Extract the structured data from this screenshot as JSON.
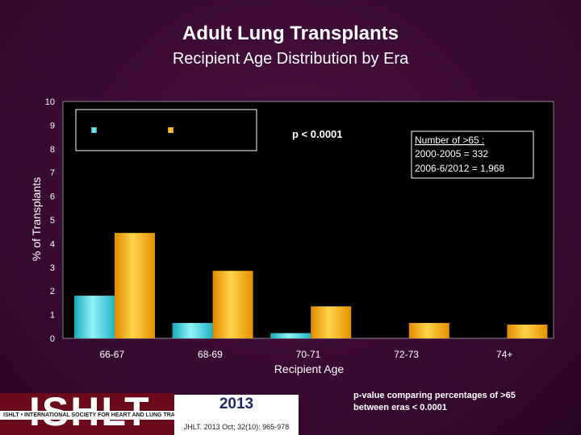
{
  "header": {
    "title": "Adult Lung Transplants",
    "subtitle": "Recipient Age Distribution by Era"
  },
  "annotations": {
    "pvalue": "p < 0.0001",
    "box_title": "Number of >65 :",
    "box_line1": "2000-2005 = 332",
    "box_line2": "2006-6/2012 = 1,968"
  },
  "footer": {
    "note_line1": "p-value comparing percentages of >65",
    "note_line2": "between eras < 0.0001",
    "logo": "ISHLT",
    "logo_sub": "ISHLT • INTERNATIONAL SOCIETY FOR HEART AND LUNG TRANSPLANTATION",
    "year": "2013",
    "citation": "JHLT. 2013 Oct; 32(10): 965-978"
  },
  "colors": {
    "series1": "#40d8e0",
    "series2": "#f5a800",
    "plot_bg": "#ffffff",
    "grid": "#c8c8c8"
  },
  "chart_data": {
    "type": "bar",
    "title": "Adult Lung Transplants",
    "subtitle": "Recipient Age Distribution by Era",
    "xlabel": "Recipient Age",
    "ylabel": "% of Transplants",
    "ylim": [
      0,
      10
    ],
    "yticks": [
      0,
      1,
      2,
      3,
      4,
      5,
      6,
      7,
      8,
      9,
      10
    ],
    "grid": false,
    "legend": "top-left",
    "categories": [
      "66-67",
      "68-69",
      "70-71",
      "72-73",
      "74+"
    ],
    "series": [
      {
        "values": [
          1.8,
          0.65,
          0.22,
          0,
          0
        ]
      },
      {
        "values": [
          4.45,
          2.85,
          1.35,
          0.65,
          0.58
        ]
      }
    ]
  }
}
